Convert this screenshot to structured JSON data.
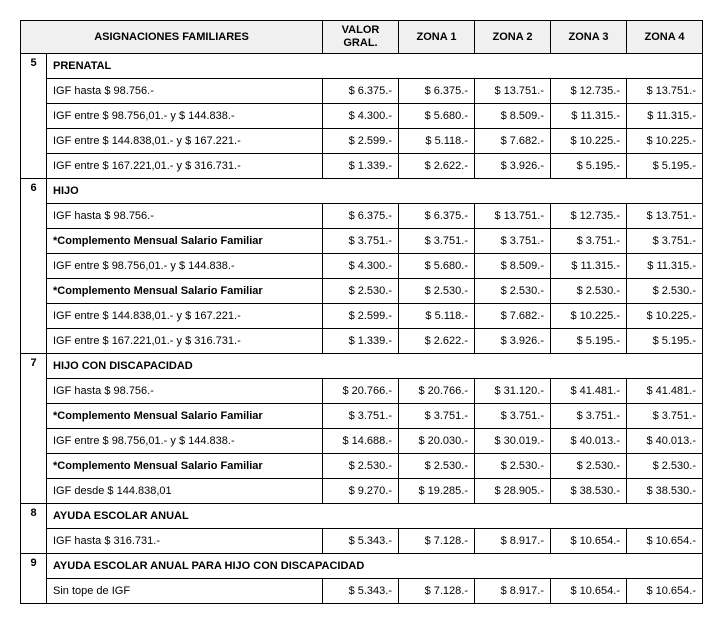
{
  "header": {
    "title": "ASIGNACIONES FAMILIARES",
    "columns": [
      "VALOR GRAL.",
      "ZONA 1",
      "ZONA 2",
      "ZONA 3",
      "ZONA 4"
    ]
  },
  "sections": [
    {
      "number": "5",
      "title": "PRENATAL",
      "rows": [
        {
          "label": "IGF hasta $ 98.756.-",
          "bold": false,
          "values": [
            "$ 6.375.-",
            "$ 6.375.-",
            "$ 13.751.-",
            "$ 12.735.-",
            "$ 13.751.-"
          ]
        },
        {
          "label": "IGF entre $ 98.756,01.- y $ 144.838.-",
          "bold": false,
          "values": [
            "$ 4.300.-",
            "$ 5.680.-",
            "$ 8.509.-",
            "$ 11.315.-",
            "$ 11.315.-"
          ]
        },
        {
          "label": "IGF entre $ 144.838,01.- y $ 167.221.-",
          "bold": false,
          "values": [
            "$ 2.599.-",
            "$ 5.118.-",
            "$ 7.682.-",
            "$ 10.225.-",
            "$ 10.225.-"
          ]
        },
        {
          "label": "IGF entre $ 167.221,01.- y $ 316.731.-",
          "bold": false,
          "values": [
            "$ 1.339.-",
            "$ 2.622.-",
            "$ 3.926.-",
            "$ 5.195.-",
            "$ 5.195.-"
          ]
        }
      ]
    },
    {
      "number": "6",
      "title": "HIJO",
      "rows": [
        {
          "label": "IGF hasta $ 98.756.-",
          "bold": false,
          "values": [
            "$ 6.375.-",
            "$ 6.375.-",
            "$ 13.751.-",
            "$ 12.735.-",
            "$ 13.751.-"
          ]
        },
        {
          "label": "*Complemento Mensual Salario Familiar",
          "bold": true,
          "values": [
            "$ 3.751.-",
            "$ 3.751.-",
            "$ 3.751.-",
            "$ 3.751.-",
            "$ 3.751.-"
          ]
        },
        {
          "label": "IGF entre $ 98.756,01.- y $ 144.838.-",
          "bold": false,
          "values": [
            "$ 4.300.-",
            "$ 5.680.-",
            "$ 8.509.-",
            "$ 11.315.-",
            "$ 11.315.-"
          ]
        },
        {
          "label": "*Complemento Mensual Salario Familiar",
          "bold": true,
          "values": [
            "$ 2.530.-",
            "$ 2.530.-",
            "$ 2.530.-",
            "$ 2.530.-",
            "$ 2.530.-"
          ]
        },
        {
          "label": "IGF entre $ 144.838,01.- y $ 167.221.-",
          "bold": false,
          "values": [
            "$ 2.599.-",
            "$ 5.118.-",
            "$ 7.682.-",
            "$ 10.225.-",
            "$ 10.225.-"
          ]
        },
        {
          "label": "IGF entre $ 167.221,01.- y $ 316.731.-",
          "bold": false,
          "values": [
            "$ 1.339.-",
            "$ 2.622.-",
            "$ 3.926.-",
            "$ 5.195.-",
            "$ 5.195.-"
          ]
        }
      ]
    },
    {
      "number": "7",
      "title": "HIJO CON DISCAPACIDAD",
      "rows": [
        {
          "label": "IGF hasta $ 98.756.-",
          "bold": false,
          "values": [
            "$ 20.766.-",
            "$ 20.766.-",
            "$ 31.120.-",
            "$ 41.481.-",
            "$ 41.481.-"
          ]
        },
        {
          "label": "*Complemento Mensual Salario Familiar",
          "bold": true,
          "values": [
            "$ 3.751.-",
            "$ 3.751.-",
            "$ 3.751.-",
            "$ 3.751.-",
            "$ 3.751.-"
          ]
        },
        {
          "label": "IGF entre $ 98.756,01.- y $ 144.838.-",
          "bold": false,
          "values": [
            "$ 14.688.-",
            "$ 20.030.-",
            "$ 30.019.-",
            "$ 40.013.-",
            "$ 40.013.-"
          ]
        },
        {
          "label": "*Complemento Mensual Salario Familiar",
          "bold": true,
          "values": [
            "$ 2.530.-",
            "$ 2.530.-",
            "$ 2.530.-",
            "$ 2.530.-",
            "$ 2.530.-"
          ]
        },
        {
          "label": "IGF desde $ 144.838,01",
          "bold": false,
          "values": [
            "$ 9.270.-",
            "$ 19.285.-",
            "$ 28.905.-",
            "$ 38.530.-",
            "$ 38.530.-"
          ]
        }
      ]
    },
    {
      "number": "8",
      "title": "AYUDA ESCOLAR ANUAL",
      "rows": [
        {
          "label": "IGF hasta $ 316.731.-",
          "bold": false,
          "values": [
            "$ 5.343.-",
            "$ 7.128.-",
            "$ 8.917.-",
            "$ 10.654.-",
            "$ 10.654.-"
          ]
        }
      ]
    },
    {
      "number": "9",
      "title": "AYUDA ESCOLAR ANUAL PARA HIJO CON DISCAPACIDAD",
      "rows": [
        {
          "label": "Sin tope de IGF",
          "bold": false,
          "values": [
            "$ 5.343.-",
            "$ 7.128.-",
            "$ 8.917.-",
            "$ 10.654.-",
            "$ 10.654.-"
          ]
        }
      ]
    }
  ]
}
